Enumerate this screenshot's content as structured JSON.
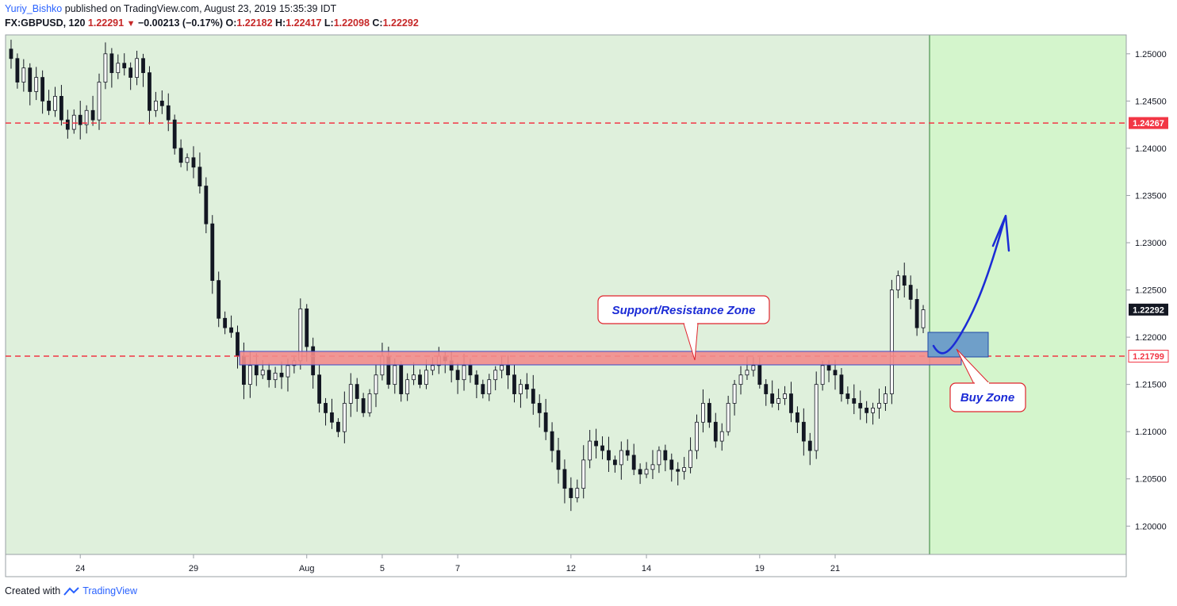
{
  "header": {
    "author": "Yuriy_Bishko",
    "published_text": "published on TradingView.com, August 23, 2019 15:35:39 IDT",
    "symbol": "FX:GBPUSD, 120",
    "last": "1.22291",
    "change": "−0.00213 (−0.17%)",
    "o_label": "O:",
    "o_value": "1.22182",
    "h_label": "H:",
    "h_value": "1.22417",
    "l_label": "L:",
    "l_value": "1.22098",
    "c_label": "C:",
    "c_value": "1.22292"
  },
  "footer": {
    "created_with": "Created with",
    "brand": "TradingView"
  },
  "colors": {
    "background_zone": "#dff0dc",
    "future_zone": "#d4f5cc",
    "candle": "#131722",
    "dashed_line": "#f23645",
    "sr_zone": "#f28c8c",
    "buy_zone": "#6f9fc9",
    "arrow": "#1b2bd6",
    "callout_border": "#e0242c"
  },
  "chart_data": {
    "type": "candlestick",
    "title": "FX:GBPUSD, 120",
    "ylim": [
      1.197,
      1.252
    ],
    "y_ticks": [
      "1.25000",
      "1.24500",
      "1.24000",
      "1.23500",
      "1.23000",
      "1.22500",
      "1.22000",
      "1.21500",
      "1.21000",
      "1.20500",
      "1.20000"
    ],
    "x_ticks": [
      {
        "label": "24",
        "index": 11
      },
      {
        "label": "29",
        "index": 29
      },
      {
        "label": "Aug",
        "index": 47
      },
      {
        "label": "5",
        "index": 59
      },
      {
        "label": "7",
        "index": 71
      },
      {
        "label": "12",
        "index": 89
      },
      {
        "label": "14",
        "index": 101
      },
      {
        "label": "19",
        "index": 119
      },
      {
        "label": "21",
        "index": 131
      }
    ],
    "levels": [
      {
        "name": "resistance-line",
        "value": 1.24267,
        "label": "1.24267"
      },
      {
        "name": "support-line",
        "value": 1.21799,
        "label": "1.21799"
      }
    ],
    "last_price": {
      "value": 1.22292,
      "label": "1.22292"
    },
    "closes": [
      1.2495,
      1.247,
      1.2485,
      1.246,
      1.2475,
      1.245,
      1.244,
      1.2455,
      1.243,
      1.242,
      1.2435,
      1.2425,
      1.244,
      1.243,
      1.247,
      1.25,
      1.248,
      1.249,
      1.2485,
      1.2475,
      1.2495,
      1.248,
      1.244,
      1.245,
      1.2445,
      1.243,
      1.24,
      1.2385,
      1.239,
      1.238,
      1.236,
      1.232,
      1.226,
      1.222,
      1.221,
      1.2205,
      1.218,
      1.215,
      1.217,
      1.216,
      1.2165,
      1.2155,
      1.2162,
      1.2158,
      1.217,
      1.2175,
      1.223,
      1.219,
      1.216,
      1.213,
      1.212,
      1.211,
      1.21,
      1.213,
      1.215,
      1.2135,
      1.212,
      1.214,
      1.216,
      1.218,
      1.215,
      1.217,
      1.214,
      1.2155,
      1.216,
      1.215,
      1.2165,
      1.217,
      1.218,
      1.2175,
      1.2165,
      1.2155,
      1.217,
      1.216,
      1.215,
      1.214,
      1.2155,
      1.2165,
      1.217,
      1.216,
      1.214,
      1.215,
      1.2145,
      1.213,
      1.212,
      1.21,
      1.208,
      1.206,
      1.204,
      1.203,
      1.204,
      1.207,
      1.209,
      1.2085,
      1.208,
      1.207,
      1.2065,
      1.208,
      1.2075,
      1.206,
      1.2055,
      1.206,
      1.2065,
      1.208,
      1.207,
      1.206,
      1.2058,
      1.2062,
      1.208,
      1.211,
      1.213,
      1.211,
      1.209,
      1.21,
      1.213,
      1.215,
      1.216,
      1.2165,
      1.217,
      1.215,
      1.214,
      1.213,
      1.2135,
      1.214,
      1.212,
      1.211,
      1.209,
      1.208,
      1.215,
      1.217,
      1.2165,
      1.216,
      1.214,
      1.2135,
      1.213,
      1.2125,
      1.212,
      1.2125,
      1.213,
      1.214,
      1.225,
      1.2265,
      1.2255,
      1.224,
      1.221,
      1.2229
    ]
  },
  "annotations": {
    "sr_zone_label": "Support/Resistance Zone",
    "buy_zone_label": "Buy Zone"
  }
}
